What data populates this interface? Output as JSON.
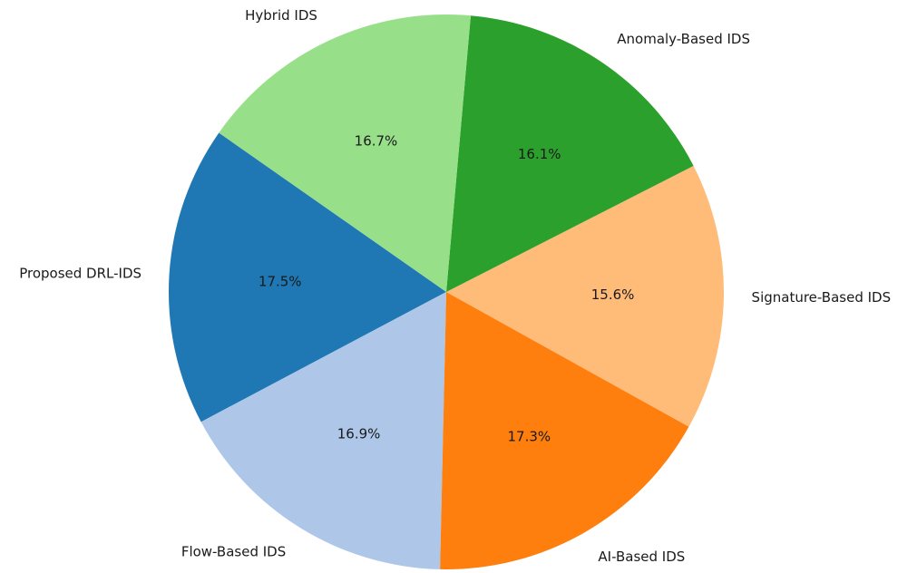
{
  "chart_data": {
    "type": "pie",
    "title": "",
    "start_angle_deg": 145,
    "direction": "counterclockwise",
    "slices": [
      {
        "label": "Proposed DRL-IDS",
        "value": 17.5,
        "pct_label": "17.5%",
        "color": "#1f77b4"
      },
      {
        "label": "Flow-Based IDS",
        "value": 16.9,
        "pct_label": "16.9%",
        "color": "#aec7e8"
      },
      {
        "label": "AI-Based IDS",
        "value": 17.3,
        "pct_label": "17.3%",
        "color": "#ff7f0e"
      },
      {
        "label": "Signature-Based IDS",
        "value": 15.6,
        "pct_label": "15.6%",
        "color": "#ffbb78"
      },
      {
        "label": "Anomaly-Based IDS",
        "value": 16.1,
        "pct_label": "16.1%",
        "color": "#2ca02c"
      },
      {
        "label": "Hybrid IDS",
        "value": 16.7,
        "pct_label": "16.7%",
        "color": "#98df8a"
      }
    ]
  }
}
